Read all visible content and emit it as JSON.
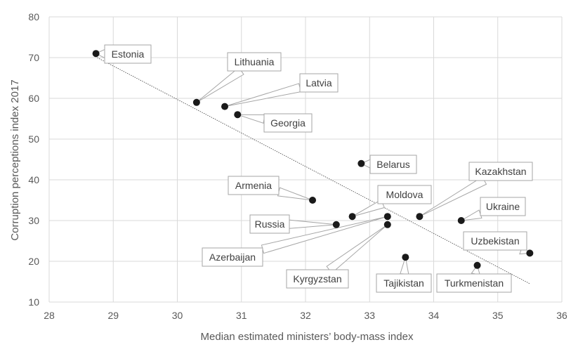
{
  "chart_data": {
    "type": "scatter",
    "xlabel": "Median estimated ministers’ body-mass index",
    "ylabel": "Corruption perceptions index 2017",
    "xlim": [
      28,
      36
    ],
    "ylim": [
      10,
      80
    ],
    "x_ticks": [
      "28",
      "29",
      "30",
      "31",
      "32",
      "33",
      "34",
      "35",
      "36"
    ],
    "y_ticks": [
      "10",
      "20",
      "30",
      "40",
      "50",
      "60",
      "70",
      "80"
    ],
    "grid": true,
    "trendline": {
      "type": "linear",
      "from": [
        28.75,
        70
      ],
      "to": [
        35.5,
        14.5
      ]
    },
    "points": [
      {
        "label": "Estonia",
        "x": 28.73,
        "y": 71
      },
      {
        "label": "Lithuania",
        "x": 30.3,
        "y": 59
      },
      {
        "label": "Latvia",
        "x": 30.74,
        "y": 58
      },
      {
        "label": "Georgia",
        "x": 30.94,
        "y": 56
      },
      {
        "label": "Belarus",
        "x": 32.87,
        "y": 44
      },
      {
        "label": "Armenia",
        "x": 32.11,
        "y": 35
      },
      {
        "label": "Moldova",
        "x": 32.73,
        "y": 31
      },
      {
        "label": "Kazakhstan",
        "x": 33.78,
        "y": 31
      },
      {
        "label": "Russia",
        "x": 32.48,
        "y": 29
      },
      {
        "label": "Azerbaijan",
        "x": 33.28,
        "y": 31
      },
      {
        "label": "Kyrgyzstan",
        "x": 33.28,
        "y": 29
      },
      {
        "label": "Ukraine",
        "x": 34.43,
        "y": 30
      },
      {
        "label": "Uzbekistan",
        "x": 35.5,
        "y": 22
      },
      {
        "label": "Tajikistan",
        "x": 33.56,
        "y": 21
      },
      {
        "label": "Turkmenistan",
        "x": 34.68,
        "y": 19
      }
    ]
  }
}
